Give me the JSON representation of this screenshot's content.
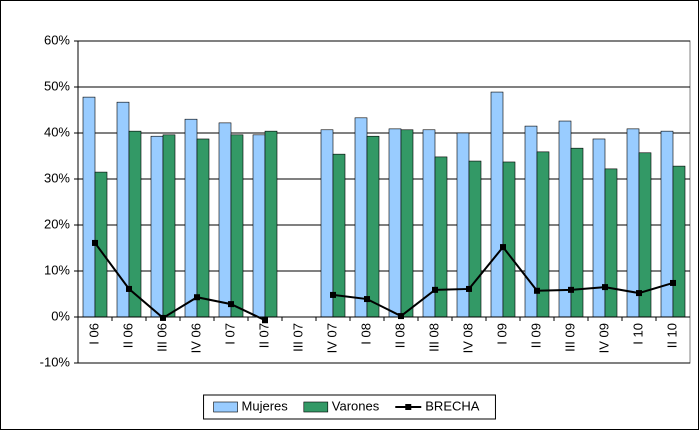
{
  "chart_data": {
    "type": "bar-line",
    "categories": [
      "I 06",
      "II 06",
      "III 06",
      "IV 06",
      "I 07",
      "II 07",
      "III 07",
      "IV 07",
      "I 08",
      "II 08",
      "III 08",
      "IV 08",
      "I 09",
      "II 09",
      "III 09",
      "IV 09",
      "I 10",
      "II 10"
    ],
    "series": [
      {
        "name": "Mujeres",
        "type": "bar",
        "color": "#99ccff",
        "values": [
          47.8,
          46.7,
          39.3,
          43.0,
          42.2,
          39.6,
          null,
          40.7,
          43.3,
          40.9,
          40.7,
          40.0,
          48.9,
          41.5,
          42.6,
          38.7,
          40.9,
          40.4
        ]
      },
      {
        "name": "Varones",
        "type": "bar",
        "color": "#339966",
        "values": [
          31.5,
          40.4,
          39.6,
          38.7,
          39.6,
          40.4,
          null,
          35.4,
          39.3,
          40.7,
          34.8,
          33.9,
          33.7,
          35.9,
          36.7,
          32.2,
          35.7,
          32.8
        ]
      },
      {
        "name": "BRECHA",
        "type": "line",
        "color": "#000000",
        "values": [
          16.1,
          6.1,
          -0.2,
          4.3,
          2.8,
          -0.7,
          null,
          4.8,
          3.9,
          0.2,
          5.9,
          6.1,
          15.2,
          5.7,
          5.9,
          6.5,
          5.2,
          7.4
        ]
      }
    ],
    "ylim": [
      -10,
      60
    ],
    "yticks": [
      {
        "value": -10,
        "label": "-10%"
      },
      {
        "value": 0,
        "label": "0%"
      },
      {
        "value": 10,
        "label": "10%"
      },
      {
        "value": 20,
        "label": "20%"
      },
      {
        "value": 30,
        "label": "30%"
      },
      {
        "value": 40,
        "label": "40%"
      },
      {
        "value": 50,
        "label": "50%"
      },
      {
        "value": 60,
        "label": "60%"
      }
    ],
    "grid": true,
    "legend": "bottom"
  }
}
